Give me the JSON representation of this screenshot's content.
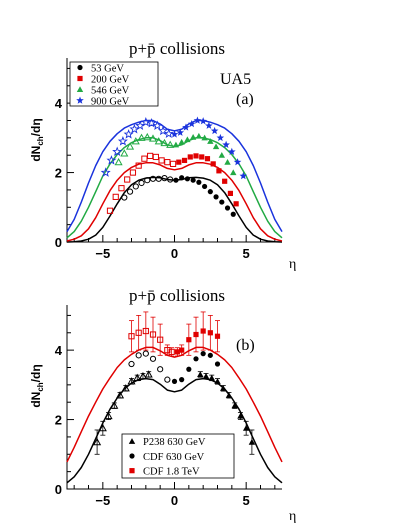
{
  "chart_data": [
    {
      "type": "scatter",
      "panel": "(a)",
      "title": "p+p̄ collisions",
      "annotation": "UA5",
      "panel_label": "(a)",
      "xlabel": "η",
      "ylabel": "dNch/dη",
      "xlim": [
        -7.5,
        7.5
      ],
      "ylim": [
        0,
        5.3
      ],
      "xticks": [
        -5,
        0,
        5
      ],
      "yticks": [
        0,
        2,
        4
      ],
      "legend_position": "top-left",
      "series": [
        {
          "name": "53 GeV",
          "color": "#000000",
          "marker": "circle",
          "x": [
            -3.5,
            -3.1,
            -2.7,
            -2.3,
            -1.9,
            -1.5,
            -1.1,
            -0.7,
            -0.3,
            0.1,
            0.5,
            0.9,
            1.3,
            1.7,
            2.1,
            2.5,
            2.9,
            3.3,
            3.7,
            4.1
          ],
          "y": [
            1.28,
            1.45,
            1.6,
            1.7,
            1.78,
            1.82,
            1.82,
            1.84,
            1.8,
            1.78,
            1.85,
            1.82,
            1.78,
            1.72,
            1.6,
            1.45,
            1.3,
            1.15,
            0.98,
            0.8
          ],
          "open_below_x": 0
        },
        {
          "name": "200 GeV",
          "color": "#e00000",
          "marker": "square",
          "x": [
            -4.5,
            -4.1,
            -3.7,
            -3.3,
            -2.9,
            -2.5,
            -2.1,
            -1.7,
            -1.3,
            -0.9,
            -0.5,
            -0.1,
            0.3,
            0.7,
            1.1,
            1.5,
            1.9,
            2.3,
            2.7,
            3.1,
            3.5,
            3.9,
            4.3
          ],
          "y": [
            0.9,
            1.3,
            1.55,
            1.8,
            2.0,
            2.2,
            2.4,
            2.48,
            2.45,
            2.35,
            2.3,
            2.25,
            2.3,
            2.35,
            2.45,
            2.48,
            2.45,
            2.4,
            2.25,
            2.05,
            1.75,
            1.4,
            1.1
          ],
          "open_below_x": 0
        },
        {
          "name": "546 GeV",
          "color": "#22aa44",
          "marker": "triangle",
          "x": [
            -3.9,
            -3.5,
            -3.1,
            -2.7,
            -2.3,
            -1.9,
            -1.5,
            -1.1,
            -0.7,
            -0.3,
            0.1,
            0.5,
            0.9,
            1.3,
            1.7,
            2.1,
            2.5,
            2.9,
            3.3,
            3.7,
            4.1
          ],
          "y": [
            2.3,
            2.55,
            2.75,
            2.9,
            3.0,
            3.02,
            2.98,
            2.9,
            2.85,
            2.8,
            2.8,
            2.88,
            2.95,
            3.02,
            3.05,
            3.0,
            2.9,
            2.75,
            2.5,
            2.3,
            2.0
          ],
          "open_below_x": 0
        },
        {
          "name": "900 GeV",
          "color": "#1a33dd",
          "marker": "star",
          "x": [
            -4.8,
            -4.4,
            -4.0,
            -3.6,
            -3.2,
            -2.8,
            -2.4,
            -2.0,
            -1.6,
            -1.2,
            -0.8,
            -0.4,
            0.0,
            0.4,
            0.8,
            1.2,
            1.6,
            2.0,
            2.4,
            2.8,
            3.2,
            3.6,
            4.0,
            4.4,
            4.8
          ],
          "y": [
            2.0,
            2.35,
            2.6,
            2.9,
            3.1,
            3.25,
            3.35,
            3.45,
            3.42,
            3.35,
            3.2,
            3.12,
            3.1,
            3.15,
            3.3,
            3.4,
            3.5,
            3.48,
            3.35,
            3.2,
            3.0,
            2.8,
            2.6,
            2.3,
            1.9
          ],
          "open_below_x": 0
        }
      ],
      "curves": [
        {
          "color": "#000000",
          "x": [
            -7.5,
            -7,
            -6.5,
            -6,
            -5.5,
            -5,
            -4.5,
            -4,
            -3.5,
            -3,
            -2.5,
            -2,
            -1.5,
            -1,
            -0.5,
            0,
            0.5,
            1,
            1.5,
            2,
            2.5,
            3,
            3.5,
            4,
            4.5,
            5,
            5.5,
            6,
            6.5,
            7,
            7.5
          ],
          "y": [
            0,
            0.01,
            0.03,
            0.08,
            0.2,
            0.42,
            0.75,
            1.1,
            1.42,
            1.65,
            1.78,
            1.84,
            1.86,
            1.85,
            1.8,
            1.78,
            1.8,
            1.85,
            1.86,
            1.84,
            1.78,
            1.65,
            1.42,
            1.1,
            0.75,
            0.42,
            0.2,
            0.08,
            0.03,
            0.01,
            0
          ]
        },
        {
          "color": "#e00000",
          "x": [
            -7.5,
            -7,
            -6.5,
            -6,
            -5.5,
            -5,
            -4.5,
            -4,
            -3.5,
            -3,
            -2.5,
            -2,
            -1.5,
            -1,
            -0.5,
            0,
            0.5,
            1,
            1.5,
            2,
            2.5,
            3,
            3.5,
            4,
            4.5,
            5,
            5.5,
            6,
            6.5,
            7,
            7.5
          ],
          "y": [
            0.03,
            0.08,
            0.18,
            0.38,
            0.7,
            1.1,
            1.48,
            1.78,
            2.0,
            2.15,
            2.24,
            2.28,
            2.28,
            2.22,
            2.12,
            2.08,
            2.12,
            2.22,
            2.28,
            2.28,
            2.24,
            2.15,
            2.0,
            1.78,
            1.48,
            1.1,
            0.7,
            0.38,
            0.18,
            0.08,
            0.03
          ]
        },
        {
          "color": "#22aa44",
          "x": [
            -7.5,
            -7,
            -6.5,
            -6,
            -5.5,
            -5,
            -4.5,
            -4,
            -3.5,
            -3,
            -2.5,
            -2,
            -1.5,
            -1,
            -0.5,
            0,
            0.5,
            1,
            1.5,
            2,
            2.5,
            3,
            3.5,
            4,
            4.5,
            5,
            5.5,
            6,
            6.5,
            7,
            7.5
          ],
          "y": [
            0.12,
            0.3,
            0.6,
            1.0,
            1.45,
            1.9,
            2.25,
            2.52,
            2.72,
            2.86,
            2.95,
            3.0,
            3.0,
            2.92,
            2.8,
            2.75,
            2.8,
            2.92,
            3.0,
            3.0,
            2.95,
            2.86,
            2.72,
            2.52,
            2.25,
            1.9,
            1.45,
            1.0,
            0.6,
            0.3,
            0.12
          ]
        },
        {
          "color": "#1a33dd",
          "x": [
            -7.5,
            -7,
            -6.5,
            -6,
            -5.5,
            -5,
            -4.5,
            -4,
            -3.5,
            -3,
            -2.5,
            -2,
            -1.5,
            -1,
            -0.5,
            0,
            0.5,
            1,
            1.5,
            2,
            2.5,
            3,
            3.5,
            4,
            4.5,
            5,
            5.5,
            6,
            6.5,
            7,
            7.5
          ],
          "y": [
            0.3,
            0.65,
            1.15,
            1.7,
            2.2,
            2.6,
            2.9,
            3.12,
            3.28,
            3.38,
            3.45,
            3.5,
            3.5,
            3.4,
            3.25,
            3.2,
            3.25,
            3.4,
            3.5,
            3.5,
            3.45,
            3.38,
            3.28,
            3.12,
            2.9,
            2.6,
            2.2,
            1.7,
            1.15,
            0.65,
            0.3
          ]
        }
      ]
    },
    {
      "type": "scatter",
      "panel": "(b)",
      "title": "p+p̄ collisions",
      "panel_label": "(b)",
      "xlabel": "η",
      "ylabel": "dNch/dη",
      "xlim": [
        -7.5,
        7.5
      ],
      "ylim": [
        0,
        5.3
      ],
      "xticks": [
        -5,
        0,
        5
      ],
      "yticks": [
        0,
        2,
        4
      ],
      "legend_position": "bottom-center",
      "series": [
        {
          "name": "P238 630 GeV",
          "color": "#000000",
          "marker": "triangle",
          "x": [
            -5.4,
            -5.0,
            -4.6,
            -4.2,
            -3.8,
            -3.4,
            -3.0,
            -2.6,
            -2.2,
            -1.8,
            1.8,
            2.2,
            2.6,
            3.0,
            3.4,
            3.8,
            4.2,
            4.6,
            5.0,
            5.4
          ],
          "y": [
            1.35,
            1.75,
            2.1,
            2.4,
            2.7,
            2.9,
            3.1,
            3.2,
            3.25,
            3.3,
            3.3,
            3.25,
            3.2,
            3.1,
            2.9,
            2.7,
            2.4,
            2.1,
            1.75,
            1.35
          ],
          "yerr": [
            0.35,
            0.2,
            0.1,
            0.08,
            0.08,
            0.08,
            0.08,
            0.08,
            0.08,
            0.08,
            0.08,
            0.08,
            0.08,
            0.08,
            0.08,
            0.08,
            0.08,
            0.1,
            0.2,
            0.35
          ],
          "open_below_x": 0
        },
        {
          "name": "CDF 630 GeV",
          "color": "#000000",
          "marker": "circle",
          "x": [
            -3.0,
            -2.5,
            -2.0,
            -1.5,
            -1.0,
            -0.5,
            0.0,
            0.5,
            1.0,
            1.5,
            2.0,
            2.5,
            3.0
          ],
          "y": [
            3.6,
            3.85,
            3.9,
            3.75,
            3.45,
            3.15,
            3.1,
            3.15,
            3.45,
            3.75,
            3.9,
            3.85,
            3.6
          ],
          "open_below_x": 0
        },
        {
          "name": "CDF 1.8 TeV",
          "color": "#e00000",
          "marker": "square",
          "x": [
            -3.0,
            -2.5,
            -2.0,
            -1.5,
            -1.0,
            -0.5,
            -0.2,
            0.2,
            0.5,
            1.0,
            1.5,
            2.0,
            2.5,
            3.0
          ],
          "y": [
            4.4,
            4.5,
            4.55,
            4.45,
            4.3,
            4.0,
            3.95,
            3.95,
            4.0,
            4.3,
            4.45,
            4.55,
            4.5,
            4.4
          ],
          "yerr": [
            0.45,
            0.5,
            0.55,
            0.5,
            0.45,
            0.15,
            0.12,
            0.12,
            0.15,
            0.45,
            0.5,
            0.55,
            0.5,
            0.45
          ],
          "open_below_x": 0
        }
      ],
      "curves": [
        {
          "color": "#000000",
          "x": [
            -7.5,
            -7,
            -6.5,
            -6,
            -5.5,
            -5,
            -4.5,
            -4,
            -3.5,
            -3,
            -2.5,
            -2,
            -1.5,
            -1,
            -0.5,
            0,
            0.5,
            1,
            1.5,
            2,
            2.5,
            3,
            3.5,
            4,
            4.5,
            5,
            5.5,
            6,
            6.5,
            7,
            7.5
          ],
          "y": [
            0.18,
            0.35,
            0.62,
            1.0,
            1.45,
            1.9,
            2.3,
            2.62,
            2.88,
            3.05,
            3.15,
            3.18,
            3.15,
            3.02,
            2.85,
            2.8,
            2.85,
            3.02,
            3.15,
            3.18,
            3.15,
            3.05,
            2.88,
            2.62,
            2.3,
            1.9,
            1.45,
            1.0,
            0.62,
            0.35,
            0.18
          ]
        },
        {
          "color": "#e00000",
          "x": [
            -7.5,
            -7,
            -6.5,
            -6,
            -5.5,
            -5,
            -4.5,
            -4,
            -3.5,
            -3,
            -2.5,
            -2,
            -1.5,
            -1,
            -0.5,
            0,
            0.5,
            1,
            1.5,
            2,
            2.5,
            3,
            3.5,
            4,
            4.5,
            5,
            5.5,
            6,
            6.5,
            7,
            7.5
          ],
          "y": [
            0.78,
            1.2,
            1.65,
            2.1,
            2.5,
            2.88,
            3.2,
            3.5,
            3.72,
            3.88,
            4.0,
            4.08,
            4.08,
            3.98,
            3.85,
            3.8,
            3.85,
            3.98,
            4.08,
            4.08,
            4.0,
            3.88,
            3.72,
            3.5,
            3.2,
            2.88,
            2.5,
            2.1,
            1.65,
            1.2,
            0.78
          ]
        }
      ]
    }
  ]
}
